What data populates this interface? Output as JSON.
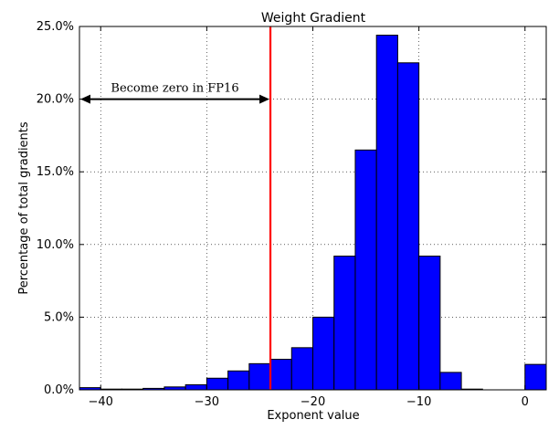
{
  "chart_data": {
    "type": "bar",
    "title": "Weight Gradient",
    "xlabel": "Exponent value",
    "ylabel": "Percentage of total gradients",
    "xlim": [
      -42,
      2
    ],
    "ylim": [
      0,
      25
    ],
    "grid": true,
    "bar_color": "#0000ff",
    "bin_width": 2,
    "bins": [
      {
        "x0": -42,
        "value": 0.15
      },
      {
        "x0": -40,
        "value": 0.05
      },
      {
        "x0": -38,
        "value": 0.05
      },
      {
        "x0": -36,
        "value": 0.1
      },
      {
        "x0": -34,
        "value": 0.2
      },
      {
        "x0": -32,
        "value": 0.35
      },
      {
        "x0": -30,
        "value": 0.8
      },
      {
        "x0": -28,
        "value": 1.3
      },
      {
        "x0": -26,
        "value": 1.8
      },
      {
        "x0": -24,
        "value": 2.1
      },
      {
        "x0": -22,
        "value": 2.9
      },
      {
        "x0": -20,
        "value": 5.0
      },
      {
        "x0": -18,
        "value": 9.2
      },
      {
        "x0": -16,
        "value": 16.5
      },
      {
        "x0": -14,
        "value": 24.4
      },
      {
        "x0": -12,
        "value": 22.5
      },
      {
        "x0": -10,
        "value": 9.2
      },
      {
        "x0": -8,
        "value": 1.2
      },
      {
        "x0": -6,
        "value": 0.05
      },
      {
        "x0": -4,
        "value": 0.0
      },
      {
        "x0": -2,
        "value": 0.0
      },
      {
        "x0": 0,
        "value": 1.75
      }
    ],
    "x_ticks": [
      {
        "value": -40,
        "label": "−40"
      },
      {
        "value": -30,
        "label": "−30"
      },
      {
        "value": -20,
        "label": "−20"
      },
      {
        "value": -10,
        "label": "−10"
      },
      {
        "value": 0,
        "label": "0"
      }
    ],
    "y_ticks": [
      {
        "value": 0,
        "label": "0.0%"
      },
      {
        "value": 5,
        "label": "5.0%"
      },
      {
        "value": 10,
        "label": "10.0%"
      },
      {
        "value": 15,
        "label": "15.0%"
      },
      {
        "value": 20,
        "label": "20.0%"
      },
      {
        "value": 25,
        "label": "25.0%"
      }
    ],
    "threshold_line": {
      "x": -24,
      "color": "#ff0000"
    },
    "annotation": {
      "text": "Become zero in FP16",
      "arrow_from_x": -42,
      "arrow_to_x": -24,
      "arrow_y": 20
    }
  }
}
